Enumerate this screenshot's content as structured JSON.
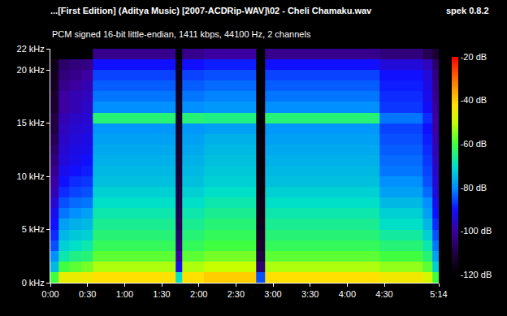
{
  "chart_data": {
    "type": "heatmap",
    "title": "...[First Edition] (Aditya Music) [2007-ACDRip-WAV]\\02 - Cheli Chamaku.wav",
    "subtitle": "PCM signed 16-bit little-endian, 1411 kbps, 44100 Hz, 2 channels",
    "annotations": [
      "spek 0.8.2"
    ],
    "x": [
      3,
      10,
      20,
      30,
      38,
      48,
      60,
      72,
      84,
      92,
      99,
      104,
      109,
      118,
      130,
      142,
      154,
      163,
      170,
      177,
      188,
      200,
      212,
      224,
      236,
      248,
      260,
      272,
      284,
      296,
      306,
      312
    ],
    "y": [
      0.5,
      1.5,
      2.5,
      3.5,
      4.5,
      5.5,
      6.5,
      7.5,
      8.5,
      9.5,
      10.5,
      11.5,
      12.5,
      13.5,
      14.5,
      15.5,
      16.5,
      17.5,
      18.5,
      19.5,
      20.5,
      21.5
    ],
    "z": [
      [
        -60,
        -45,
        -45,
        -44,
        -42,
        -42,
        -42,
        -42,
        -42,
        -42,
        -42,
        -70,
        -42,
        -42,
        -40,
        -40,
        -40,
        -40,
        -85,
        -42,
        -42,
        -42,
        -42,
        -42,
        -42,
        -42,
        -42,
        -44,
        -44,
        -44,
        -48,
        -60
      ],
      [
        -75,
        -60,
        -58,
        -56,
        -52,
        -52,
        -52,
        -52,
        -52,
        -52,
        -52,
        -92,
        -52,
        -52,
        -50,
        -50,
        -50,
        -50,
        -105,
        -52,
        -52,
        -52,
        -52,
        -52,
        -52,
        -52,
        -52,
        -54,
        -54,
        -54,
        -58,
        -72
      ],
      [
        -80,
        -68,
        -65,
        -64,
        -58,
        -58,
        -58,
        -58,
        -58,
        -58,
        -58,
        -100,
        -58,
        -58,
        -56,
        -56,
        -56,
        -56,
        -110,
        -58,
        -58,
        -58,
        -58,
        -58,
        -58,
        -58,
        -58,
        -60,
        -60,
        -60,
        -64,
        -78
      ],
      [
        -85,
        -72,
        -70,
        -68,
        -62,
        -62,
        -62,
        -62,
        -62,
        -62,
        -62,
        -104,
        -62,
        -62,
        -60,
        -60,
        -60,
        -60,
        -112,
        -62,
        -62,
        -62,
        -62,
        -62,
        -62,
        -62,
        -62,
        -64,
        -64,
        -64,
        -68,
        -82
      ],
      [
        -88,
        -75,
        -73,
        -72,
        -64,
        -64,
        -64,
        -64,
        -64,
        -64,
        -64,
        -106,
        -64,
        -64,
        -62,
        -62,
        -62,
        -62,
        -114,
        -64,
        -64,
        -64,
        -64,
        -64,
        -64,
        -64,
        -64,
        -67,
        -67,
        -67,
        -72,
        -85
      ],
      [
        -90,
        -78,
        -76,
        -75,
        -66,
        -66,
        -66,
        -66,
        -66,
        -66,
        -66,
        -108,
        -66,
        -66,
        -64,
        -64,
        -64,
        -64,
        -115,
        -66,
        -66,
        -66,
        -66,
        -66,
        -66,
        -66,
        -66,
        -70,
        -70,
        -70,
        -75,
        -88
      ],
      [
        -92,
        -82,
        -80,
        -78,
        -68,
        -68,
        -68,
        -68,
        -68,
        -68,
        -68,
        -109,
        -68,
        -68,
        -66,
        -66,
        -66,
        -66,
        -116,
        -68,
        -68,
        -68,
        -68,
        -68,
        -68,
        -68,
        -68,
        -72,
        -72,
        -72,
        -78,
        -90
      ],
      [
        -95,
        -85,
        -83,
        -82,
        -70,
        -70,
        -70,
        -70,
        -70,
        -70,
        -70,
        -110,
        -70,
        -70,
        -68,
        -68,
        -68,
        -68,
        -116,
        -70,
        -70,
        -70,
        -70,
        -70,
        -70,
        -70,
        -70,
        -75,
        -75,
        -75,
        -80,
        -92
      ],
      [
        -98,
        -88,
        -86,
        -85,
        -72,
        -72,
        -72,
        -72,
        -72,
        -72,
        -72,
        -110,
        -72,
        -72,
        -70,
        -70,
        -70,
        -70,
        -117,
        -72,
        -72,
        -72,
        -72,
        -72,
        -72,
        -72,
        -72,
        -78,
        -78,
        -78,
        -83,
        -94
      ],
      [
        -100,
        -90,
        -88,
        -87,
        -74,
        -74,
        -74,
        -74,
        -74,
        -74,
        -74,
        -111,
        -74,
        -74,
        -72,
        -72,
        -72,
        -72,
        -117,
        -74,
        -74,
        -74,
        -74,
        -74,
        -74,
        -74,
        -74,
        -80,
        -80,
        -80,
        -85,
        -95
      ],
      [
        -102,
        -92,
        -90,
        -89,
        -75,
        -75,
        -75,
        -75,
        -75,
        -75,
        -75,
        -112,
        -75,
        -75,
        -73,
        -73,
        -73,
        -73,
        -118,
        -75,
        -75,
        -75,
        -75,
        -75,
        -75,
        -75,
        -75,
        -82,
        -82,
        -82,
        -86,
        -96
      ],
      [
        -104,
        -94,
        -92,
        -90,
        -76,
        -76,
        -76,
        -76,
        -76,
        -76,
        -76,
        -112,
        -76,
        -76,
        -74,
        -74,
        -74,
        -74,
        -118,
        -76,
        -76,
        -76,
        -76,
        -76,
        -76,
        -76,
        -76,
        -83,
        -83,
        -83,
        -87,
        -97
      ],
      [
        -106,
        -95,
        -93,
        -92,
        -77,
        -77,
        -77,
        -77,
        -77,
        -77,
        -77,
        -113,
        -77,
        -77,
        -75,
        -75,
        -75,
        -75,
        -118,
        -77,
        -77,
        -77,
        -77,
        -77,
        -77,
        -77,
        -77,
        -84,
        -84,
        -84,
        -88,
        -98
      ],
      [
        -108,
        -96,
        -94,
        -93,
        -78,
        -78,
        -78,
        -78,
        -78,
        -78,
        -78,
        -113,
        -78,
        -78,
        -76,
        -76,
        -76,
        -76,
        -118,
        -78,
        -78,
        -78,
        -78,
        -78,
        -78,
        -78,
        -78,
        -85,
        -85,
        -85,
        -89,
        -99
      ],
      [
        -110,
        -97,
        -95,
        -94,
        -79,
        -79,
        -79,
        -79,
        -79,
        -79,
        -79,
        -114,
        -79,
        -79,
        -78,
        -78,
        -78,
        -78,
        -119,
        -79,
        -79,
        -79,
        -79,
        -79,
        -79,
        -79,
        -79,
        -86,
        -86,
        -86,
        -90,
        -100
      ],
      [
        -110,
        -98,
        -96,
        -95,
        -64,
        -64,
        -64,
        -64,
        -64,
        -64,
        -64,
        -114,
        -64,
        -64,
        -65,
        -65,
        -65,
        -65,
        -119,
        -64,
        -64,
        -64,
        -64,
        -64,
        -64,
        -64,
        -64,
        -82,
        -82,
        -82,
        -88,
        -100
      ],
      [
        -112,
        -100,
        -98,
        -96,
        -80,
        -80,
        -80,
        -80,
        -80,
        -80,
        -80,
        -114,
        -80,
        -80,
        -79,
        -79,
        -79,
        -79,
        -119,
        -80,
        -80,
        -80,
        -80,
        -80,
        -80,
        -80,
        -80,
        -87,
        -87,
        -87,
        -91,
        -101
      ],
      [
        -112,
        -100,
        -98,
        -97,
        -82,
        -82,
        -82,
        -82,
        -82,
        -82,
        -82,
        -115,
        -82,
        -82,
        -81,
        -81,
        -81,
        -81,
        -119,
        -82,
        -82,
        -82,
        -82,
        -82,
        -82,
        -82,
        -82,
        -88,
        -88,
        -88,
        -92,
        -102
      ],
      [
        -114,
        -102,
        -100,
        -98,
        -84,
        -84,
        -84,
        -84,
        -84,
        -84,
        -84,
        -115,
        -84,
        -84,
        -83,
        -83,
        -83,
        -83,
        -119,
        -84,
        -84,
        -84,
        -84,
        -84,
        -84,
        -84,
        -84,
        -89,
        -89,
        -89,
        -93,
        -103
      ],
      [
        -115,
        -104,
        -102,
        -100,
        -86,
        -86,
        -86,
        -86,
        -86,
        -86,
        -86,
        -116,
        -86,
        -86,
        -85,
        -85,
        -85,
        -85,
        -119,
        -86,
        -86,
        -86,
        -86,
        -86,
        -86,
        -86,
        -86,
        -90,
        -90,
        -90,
        -94,
        -104
      ],
      [
        -116,
        -106,
        -104,
        -103,
        -90,
        -90,
        -90,
        -90,
        -90,
        -90,
        -90,
        -116,
        -90,
        -90,
        -89,
        -89,
        -89,
        -89,
        -120,
        -90,
        -90,
        -90,
        -90,
        -90,
        -90,
        -90,
        -90,
        -94,
        -94,
        -94,
        -97,
        -106
      ],
      [
        -120,
        -120,
        -120,
        -120,
        -102,
        -102,
        -102,
        -102,
        -102,
        -102,
        -102,
        -120,
        -102,
        -102,
        -100,
        -100,
        -100,
        -100,
        -120,
        -102,
        -102,
        -102,
        -102,
        -102,
        -102,
        -102,
        -102,
        -104,
        -104,
        -104,
        -108,
        -112
      ]
    ],
    "xlim": [
      0,
      314
    ],
    "ylim": [
      0,
      22
    ],
    "xticks": [
      {
        "value": 0,
        "label": "0:00"
      },
      {
        "value": 30,
        "label": "0:30"
      },
      {
        "value": 60,
        "label": "1:00"
      },
      {
        "value": 90,
        "label": "1:30"
      },
      {
        "value": 120,
        "label": "2:00"
      },
      {
        "value": 150,
        "label": "2:30"
      },
      {
        "value": 180,
        "label": "3:00"
      },
      {
        "value": 210,
        "label": "3:30"
      },
      {
        "value": 240,
        "label": "4:00"
      },
      {
        "value": 270,
        "label": "4:30"
      },
      {
        "value": 314,
        "label": "5:14"
      }
    ],
    "yticks": [
      {
        "value": 0,
        "label": "0 kHz"
      },
      {
        "value": 5,
        "label": "5 kHz"
      },
      {
        "value": 10,
        "label": "10 kHz"
      },
      {
        "value": 15,
        "label": "15 kHz"
      },
      {
        "value": 20,
        "label": "20 kHz"
      },
      {
        "value": 22,
        "label": "22 kHz"
      }
    ],
    "colorbar": {
      "range": [
        -120,
        -20
      ],
      "ticks": [
        {
          "value": -20,
          "label": "-20 dB"
        },
        {
          "value": -40,
          "label": "-40 dB"
        },
        {
          "value": -60,
          "label": "-60 dB"
        },
        {
          "value": -80,
          "label": "-80 dB"
        },
        {
          "value": -100,
          "label": "-100 dB"
        },
        {
          "value": -120,
          "label": "-120 dB"
        }
      ]
    },
    "grid": false
  }
}
